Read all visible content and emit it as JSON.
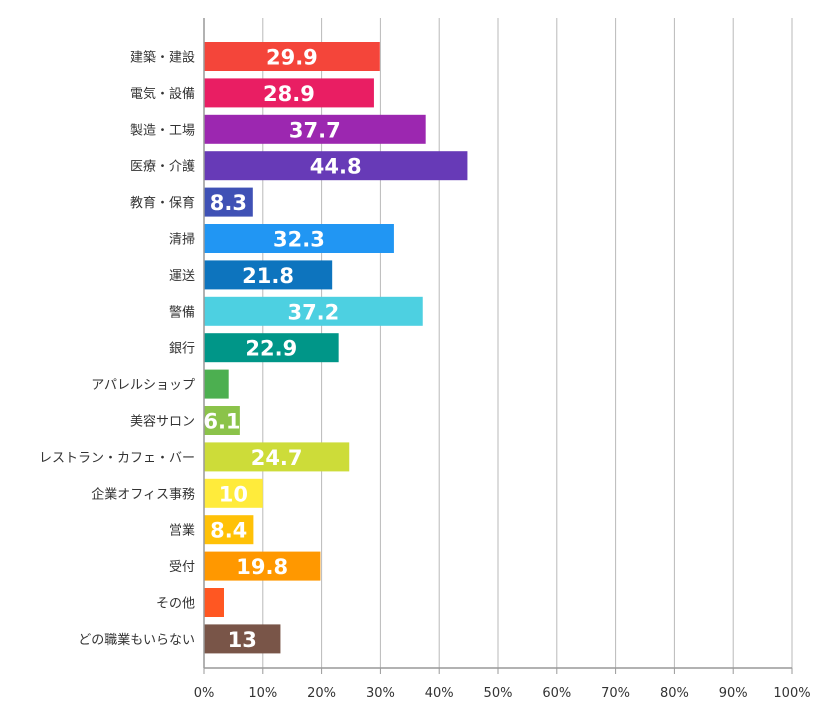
{
  "chart_data": {
    "type": "bar",
    "orientation": "horizontal",
    "categories": [
      "建築・建設",
      "電気・設備",
      "製造・工場",
      "医療・介護",
      "教育・保育",
      "清掃",
      "運送",
      "警備",
      "銀行",
      "アパレルショップ",
      "美容サロン",
      "レストラン・カフェ・バー",
      "企業オフィス事務",
      "営業",
      "受付",
      "その他",
      "どの職業もいらない"
    ],
    "values": [
      29.9,
      28.9,
      37.7,
      44.8,
      8.3,
      32.3,
      21.8,
      37.2,
      22.9,
      4.2,
      6.1,
      24.7,
      10,
      8.4,
      19.8,
      3.4,
      13
    ],
    "data_labels": [
      "29.9",
      "28.9",
      "37.7",
      "44.8",
      "8.3",
      "32.3",
      "21.8",
      "37.2",
      "22.9",
      "",
      "6.1",
      "24.7",
      "10",
      "8.4",
      "19.8",
      "",
      "13"
    ],
    "colors": [
      "#f4453a",
      "#e91e63",
      "#9c27b0",
      "#673ab7",
      "#3f51b5",
      "#2196f3",
      "#0d74be",
      "#4dd0e1",
      "#009688",
      "#4caf50",
      "#8bc34a",
      "#cddc39",
      "#ffeb3b",
      "#ffc107",
      "#ff9800",
      "#ff5722",
      "#795548"
    ],
    "xlim": [
      0,
      100
    ],
    "x_ticks": [
      "0%",
      "10%",
      "20%",
      "30%",
      "40%",
      "50%",
      "60%",
      "70%",
      "80%",
      "90%",
      "100%"
    ],
    "grid": "vertical",
    "title": "",
    "xlabel": "",
    "ylabel": ""
  }
}
